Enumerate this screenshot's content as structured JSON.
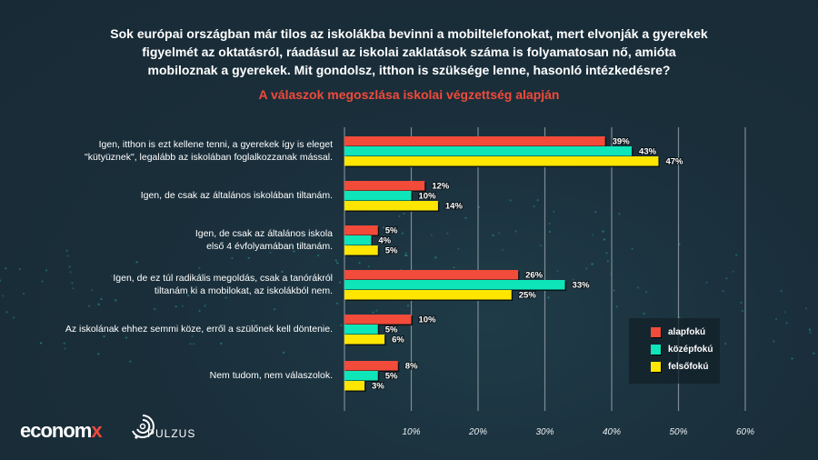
{
  "header": {
    "question_lines": [
      "Sok európai országban már tilos az iskolákba bevinni a mobiltelefonokat, mert elvonják a gyerekek",
      "figyelmét az oktatásról, ráadásul az iskolai zaklatások száma is folyamatosan nő, amióta",
      "mobiloznak a gyerekek. Mit gondolsz, itthon is szüksége lenne, hasonló intézkedésre?"
    ],
    "subtitle": "A válaszok megoszlása iskolai végzettség alapján"
  },
  "logos": {
    "economx_main": "econom",
    "economx_accent": "x",
    "pulzus": "PULZUS"
  },
  "chart_data": {
    "type": "bar",
    "orientation": "horizontal",
    "title": "A válaszok megoszlása iskolai végzettség alapján",
    "xlabel": "",
    "ylabel": "",
    "xlim": [
      0,
      60
    ],
    "x_ticks": [
      "10%",
      "20%",
      "30%",
      "40%",
      "50%",
      "60%"
    ],
    "x_tick_values": [
      10,
      20,
      30,
      40,
      50,
      60
    ],
    "grid": true,
    "legend_position": "bottom-right",
    "categories": [
      [
        "Igen, itthon is ezt kellene tenni, a gyerekek így is eleget",
        "\"kütyüznek\", legalább az iskolában foglalkozzanak mással."
      ],
      [
        "Igen, de csak az általános iskolában tiltanám."
      ],
      [
        "Igen, de csak az általános iskola",
        "első 4 évfolyamában tiltanám."
      ],
      [
        "Igen, de ez túl radikális megoldás, csak a tanórákról",
        "tiltanám ki a mobilokat, az iskolákból nem."
      ],
      [
        "Az iskolának ehhez semmi köze, erről a szülőnek kell döntenie."
      ],
      [
        "Nem tudom, nem válaszolok."
      ]
    ],
    "series": [
      {
        "name": "alapfokú",
        "color": "#f24b3a",
        "values": [
          39,
          12,
          5,
          26,
          10,
          8
        ]
      },
      {
        "name": "középfokú",
        "color": "#0ee5b8",
        "values": [
          43,
          10,
          4,
          33,
          5,
          5
        ]
      },
      {
        "name": "felsőfokú",
        "color": "#ffe600",
        "values": [
          47,
          14,
          5,
          25,
          6,
          3
        ]
      }
    ],
    "value_suffix": "%"
  }
}
